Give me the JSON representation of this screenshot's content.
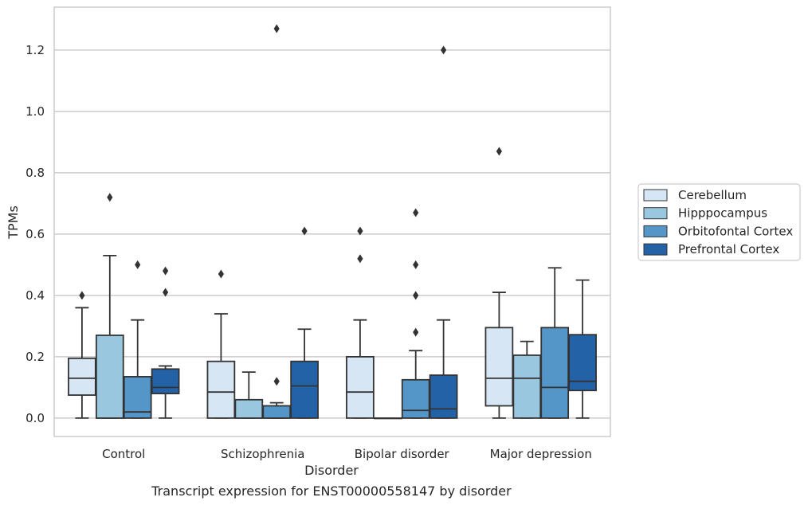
{
  "caption": "Transcript expression for ENST00000558147 by disorder",
  "chart_data": {
    "type": "box",
    "title": "",
    "xlabel": "Disorder",
    "ylabel": "TPMs",
    "ylim": [
      -0.06,
      1.34
    ],
    "yticks": [
      "0.0",
      "0.2",
      "0.4",
      "0.6",
      "0.8",
      "1.0",
      "1.2"
    ],
    "grid": "horizontal",
    "legend_position": "right",
    "categories": [
      "Control",
      "Schizophrenia",
      "Bipolar disorder",
      "Major depression"
    ],
    "series": [
      {
        "name": "Cerebellum",
        "color": "#d6e6f4",
        "boxes": [
          {
            "q1": 0.075,
            "median": 0.13,
            "q3": 0.195,
            "whisker_low": 0.0,
            "whisker_high": 0.36,
            "outliers": [
              0.4
            ]
          },
          {
            "q1": 0.0,
            "median": 0.085,
            "q3": 0.185,
            "whisker_low": 0.0,
            "whisker_high": 0.34,
            "outliers": [
              0.47
            ]
          },
          {
            "q1": 0.0,
            "median": 0.085,
            "q3": 0.2,
            "whisker_low": 0.0,
            "whisker_high": 0.32,
            "outliers": [
              0.52,
              0.61
            ]
          },
          {
            "q1": 0.04,
            "median": 0.13,
            "q3": 0.295,
            "whisker_low": 0.0,
            "whisker_high": 0.41,
            "outliers": [
              0.87
            ]
          }
        ]
      },
      {
        "name": "Hipppocampus",
        "color": "#9ac7e0",
        "boxes": [
          {
            "q1": 0.0,
            "median": 0.0,
            "q3": 0.27,
            "whisker_low": 0.0,
            "whisker_high": 0.53,
            "outliers": [
              0.72
            ]
          },
          {
            "q1": 0.0,
            "median": 0.0,
            "q3": 0.06,
            "whisker_low": 0.0,
            "whisker_high": 0.15,
            "outliers": []
          },
          {
            "q1": 0.0,
            "median": 0.0,
            "q3": 0.0,
            "whisker_low": 0.0,
            "whisker_high": 0.0,
            "outliers": []
          },
          {
            "q1": 0.0,
            "median": 0.13,
            "q3": 0.205,
            "whisker_low": 0.0,
            "whisker_high": 0.25,
            "outliers": []
          }
        ]
      },
      {
        "name": "Orbitofontal Cortex",
        "color": "#5496c8",
        "boxes": [
          {
            "q1": 0.0,
            "median": 0.02,
            "q3": 0.135,
            "whisker_low": 0.0,
            "whisker_high": 0.32,
            "outliers": [
              0.5
            ]
          },
          {
            "q1": 0.0,
            "median": 0.0,
            "q3": 0.04,
            "whisker_low": 0.0,
            "whisker_high": 0.05,
            "outliers": [
              0.12,
              1.27
            ]
          },
          {
            "q1": 0.0,
            "median": 0.025,
            "q3": 0.125,
            "whisker_low": 0.0,
            "whisker_high": 0.22,
            "outliers": [
              0.28,
              0.4,
              0.5,
              0.67
            ]
          },
          {
            "q1": 0.0,
            "median": 0.1,
            "q3": 0.295,
            "whisker_low": 0.0,
            "whisker_high": 0.49,
            "outliers": []
          }
        ]
      },
      {
        "name": "Prefrontal Cortex",
        "color": "#2462a7",
        "boxes": [
          {
            "q1": 0.08,
            "median": 0.1,
            "q3": 0.16,
            "whisker_low": 0.0,
            "whisker_high": 0.17,
            "outliers": [
              0.41,
              0.48
            ]
          },
          {
            "q1": 0.0,
            "median": 0.105,
            "q3": 0.185,
            "whisker_low": 0.0,
            "whisker_high": 0.29,
            "outliers": [
              0.61
            ]
          },
          {
            "q1": 0.0,
            "median": 0.03,
            "q3": 0.14,
            "whisker_low": 0.0,
            "whisker_high": 0.32,
            "outliers": [
              1.2
            ]
          },
          {
            "q1": 0.09,
            "median": 0.12,
            "q3": 0.272,
            "whisker_low": 0.0,
            "whisker_high": 0.45,
            "outliers": []
          }
        ]
      }
    ]
  }
}
